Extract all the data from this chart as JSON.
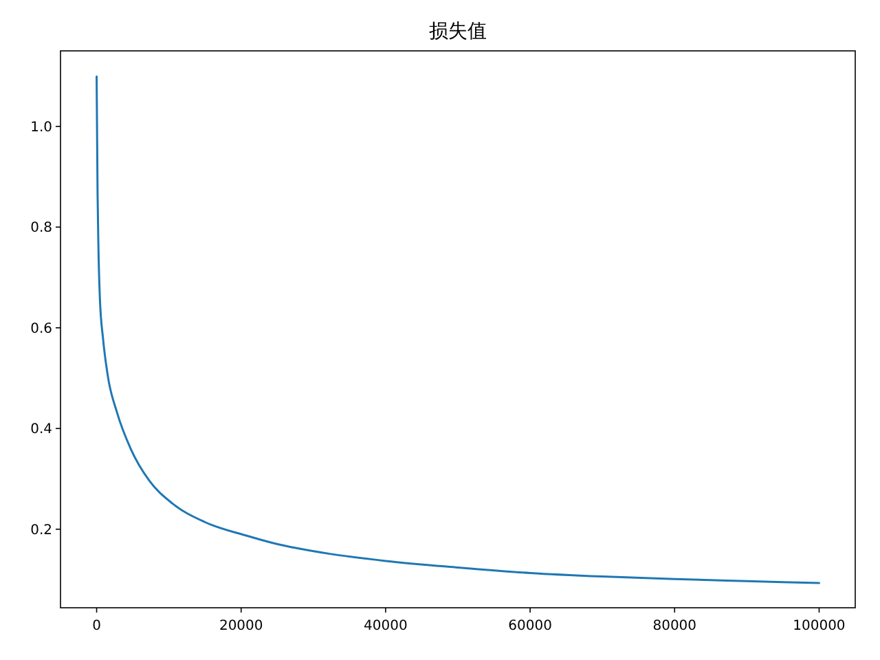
{
  "chart_data": {
    "type": "line",
    "title": "损失值",
    "x": [
      0,
      130,
      250,
      450,
      900,
      1540,
      2820,
      4740,
      7310,
      10500,
      15000,
      20800,
      24560,
      32300,
      40000,
      50000,
      60000,
      70000,
      80000,
      90000,
      100000
    ],
    "series": [
      {
        "color": "#1f77b4",
        "values": [
          1.099,
          0.867,
          0.759,
          0.659,
          0.577,
          0.505,
          0.432,
          0.359,
          0.296,
          0.251,
          0.214,
          0.187,
          0.172,
          0.151,
          0.137,
          0.124,
          0.113,
          0.106,
          0.101,
          0.097,
          0.093
        ]
      }
    ],
    "xlim": [
      -5000,
      105000
    ],
    "xticks": [
      0,
      20000,
      40000,
      60000,
      80000,
      100000
    ],
    "ylim": [
      0.044,
      1.15
    ],
    "yticks": [
      {
        "value": 0.2,
        "label": "0.2"
      },
      {
        "value": 0.4,
        "label": "0.4"
      },
      {
        "value": 0.6,
        "label": "0.6"
      },
      {
        "value": 0.8,
        "label": "0.8"
      },
      {
        "value": 1.0,
        "label": "1.0"
      }
    ],
    "marker": "none"
  }
}
